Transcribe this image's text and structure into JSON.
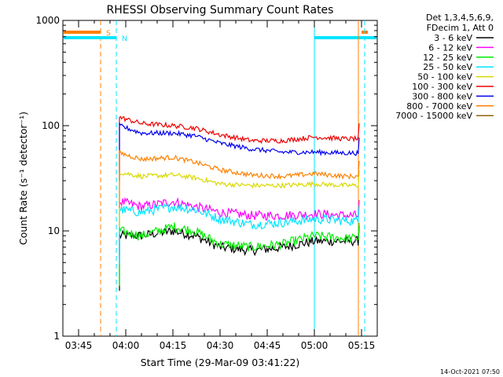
{
  "chart_data": {
    "type": "line",
    "title": "RHESSI Observing Summary Count Rates",
    "xlabel": "Start Time (29-Mar-09 03:41:22)",
    "ylabel": "Count Rate (s⁻¹ detector⁻¹)",
    "yscale": "log",
    "ylim": [
      1,
      1000
    ],
    "xlim": [
      "03:40",
      "05:20"
    ],
    "x_ticks": [
      "03:45",
      "04:00",
      "04:15",
      "04:30",
      "04:45",
      "05:00",
      "05:15"
    ],
    "y_ticks": [
      "1",
      "10",
      "100",
      "1000"
    ],
    "grid": false,
    "legend_position": "right",
    "legend_header": [
      "Det 1,3,4,5,6,9,",
      "FDecim 1, Att 0"
    ],
    "footer_date": "14-Oct-2021 07:50",
    "markers": [
      {
        "label": "S",
        "color": "#ff8000",
        "style": "dashed",
        "x": "03:52",
        "flag_from": "03:40",
        "flag_to": "03:52"
      },
      {
        "label": "N",
        "color": "#00e5ff",
        "style": "dashed",
        "x": "03:57",
        "flag_from": "03:40",
        "flag_to": "03:57"
      },
      {
        "label": "",
        "color": "#00e5ff",
        "style": "solid",
        "x": "05:00",
        "flag_from": "05:00",
        "flag_to": "05:20"
      },
      {
        "label": "",
        "color": "#ff8000",
        "style": "solid",
        "x": "05:14",
        "flag_from": "05:15",
        "flag_to": "05:17"
      },
      {
        "label": "",
        "color": "#00e5ff",
        "style": "dashed",
        "x": "05:16",
        "flag_from": "",
        "flag_to": ""
      }
    ],
    "series": [
      {
        "name": "3 - 6 keV",
        "color": "#000000",
        "x": [
          "03:58",
          "04:05",
          "04:15",
          "04:22",
          "04:30",
          "04:40",
          "04:50",
          "05:00",
          "05:10",
          "05:14"
        ],
        "values": [
          9,
          9,
          10,
          9,
          7,
          6.5,
          7,
          8,
          8,
          8
        ]
      },
      {
        "name": "6 - 12 keV",
        "color": "#ff00ff",
        "x": [
          "03:58",
          "04:05",
          "04:15",
          "04:22",
          "04:30",
          "04:40",
          "04:50",
          "05:00",
          "05:10",
          "05:14"
        ],
        "values": [
          19,
          17,
          19,
          17,
          15,
          14,
          14,
          14.5,
          14,
          14
        ]
      },
      {
        "name": "12 - 25 keV",
        "color": "#00ee00",
        "x": [
          "03:58",
          "04:05",
          "04:15",
          "04:22",
          "04:30",
          "04:40",
          "04:50",
          "05:00",
          "05:10",
          "05:14"
        ],
        "values": [
          10,
          9,
          11,
          10,
          7.5,
          7,
          7.5,
          9,
          8.5,
          8.5
        ]
      },
      {
        "name": "25 - 50 keV",
        "color": "#00e5ff",
        "x": [
          "03:58",
          "04:05",
          "04:15",
          "04:22",
          "04:30",
          "04:40",
          "04:50",
          "05:00",
          "05:10",
          "05:14"
        ],
        "values": [
          16,
          15,
          17,
          16,
          13,
          11.5,
          12,
          13,
          12.5,
          12.5
        ]
      },
      {
        "name": "50 - 100 keV",
        "color": "#d9d900",
        "x": [
          "03:58",
          "04:05",
          "04:15",
          "04:22",
          "04:30",
          "04:40",
          "04:50",
          "05:00",
          "05:10",
          "05:14"
        ],
        "values": [
          36,
          33,
          34,
          32,
          28,
          27,
          27,
          28,
          27,
          27
        ]
      },
      {
        "name": "100 - 300 keV",
        "color": "#ee0000",
        "x": [
          "03:58",
          "04:05",
          "04:15",
          "04:22",
          "04:30",
          "04:40",
          "04:50",
          "05:00",
          "05:10",
          "05:14"
        ],
        "values": [
          120,
          105,
          100,
          95,
          82,
          72,
          72,
          78,
          75,
          75
        ]
      },
      {
        "name": "300 - 800 keV",
        "color": "#0000ee",
        "x": [
          "03:58",
          "04:05",
          "04:15",
          "04:22",
          "04:30",
          "04:40",
          "04:50",
          "05:00",
          "05:10",
          "05:14"
        ],
        "values": [
          100,
          85,
          85,
          80,
          68,
          60,
          56,
          56,
          55,
          55
        ]
      },
      {
        "name": "800 - 7000 keV",
        "color": "#ff8000",
        "x": [
          "03:58",
          "04:05",
          "04:15",
          "04:22",
          "04:30",
          "04:40",
          "04:50",
          "05:00",
          "05:10",
          "05:14"
        ],
        "values": [
          55,
          48,
          50,
          45,
          38,
          34,
          33,
          35,
          33,
          33
        ]
      },
      {
        "name": "7000 - 15000 keV",
        "color": "#8b6508",
        "x": [],
        "values": []
      }
    ]
  }
}
